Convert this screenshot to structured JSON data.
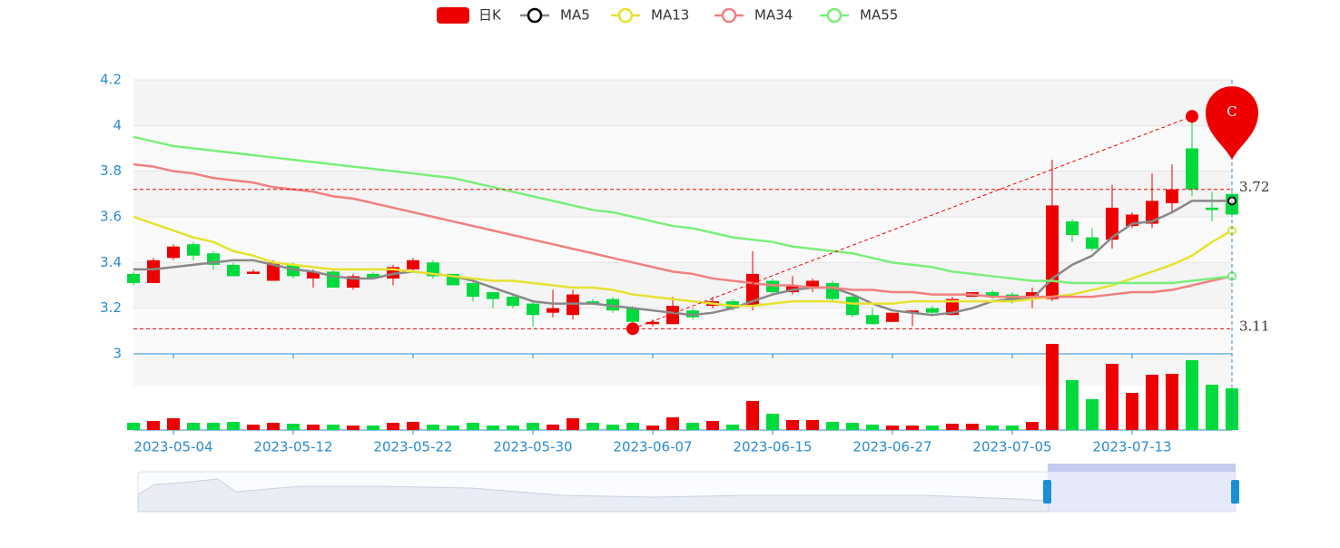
{
  "chart_data": {
    "type": "candlestick",
    "categories": [
      null,
      null,
      "2023-05-04",
      null,
      null,
      null,
      null,
      null,
      "2023-05-12",
      null,
      null,
      null,
      null,
      null,
      "2023-05-22",
      null,
      null,
      null,
      null,
      null,
      "2023-05-30",
      null,
      null,
      null,
      null,
      null,
      "2023-06-07",
      null,
      null,
      null,
      null,
      null,
      "2023-06-15",
      null,
      null,
      null,
      null,
      null,
      "2023-06-27",
      null,
      null,
      null,
      null,
      null,
      "2023-07-05",
      null,
      null,
      null,
      null,
      null,
      "2023-07-13",
      null,
      null,
      null,
      null,
      null
    ],
    "ylim": [
      3,
      4.2
    ],
    "yticks": [
      3,
      3.2,
      3.4,
      3.6,
      3.8,
      4,
      4.2
    ],
    "candles": {
      "name": "日K",
      "up_color": "#ec0000",
      "down_color": "#00da3c",
      "open": [
        3.35,
        3.31,
        3.42,
        3.48,
        3.44,
        3.39,
        3.35,
        3.32,
        3.39,
        3.33,
        3.36,
        3.29,
        3.35,
        3.33,
        3.37,
        3.4,
        3.35,
        3.31,
        3.27,
        3.25,
        3.22,
        3.18,
        3.17,
        3.23,
        3.24,
        3.2,
        3.13,
        3.13,
        3.19,
        3.21,
        3.23,
        3.21,
        3.32,
        3.27,
        3.29,
        3.31,
        3.25,
        3.17,
        3.14,
        3.18,
        3.2,
        3.17,
        3.25,
        3.27,
        3.26,
        3.24,
        3.24,
        3.58,
        3.51,
        3.5,
        3.56,
        3.57,
        3.66,
        3.9,
        3.64,
        3.7
      ],
      "close": [
        3.31,
        3.41,
        3.47,
        3.43,
        3.39,
        3.34,
        3.36,
        3.4,
        3.34,
        3.36,
        3.29,
        3.34,
        3.33,
        3.38,
        3.41,
        3.34,
        3.3,
        3.25,
        3.24,
        3.21,
        3.17,
        3.2,
        3.26,
        3.22,
        3.19,
        3.14,
        3.14,
        3.21,
        3.16,
        3.23,
        3.2,
        3.35,
        3.27,
        3.3,
        3.32,
        3.24,
        3.17,
        3.13,
        3.18,
        3.19,
        3.18,
        3.24,
        3.27,
        3.25,
        3.23,
        3.27,
        3.65,
        3.52,
        3.46,
        3.64,
        3.61,
        3.67,
        3.72,
        3.72,
        3.63,
        3.61
      ],
      "low": [
        3.3,
        3.31,
        3.41,
        3.41,
        3.37,
        3.34,
        3.35,
        3.32,
        3.33,
        3.29,
        3.29,
        3.28,
        3.33,
        3.3,
        3.36,
        3.33,
        3.3,
        3.23,
        3.2,
        3.2,
        3.12,
        3.16,
        3.15,
        3.22,
        3.18,
        3.11,
        3.12,
        3.13,
        3.15,
        3.2,
        3.19,
        3.19,
        3.26,
        3.26,
        3.27,
        3.23,
        3.16,
        3.13,
        3.14,
        3.12,
        3.17,
        3.17,
        3.25,
        3.24,
        3.22,
        3.2,
        3.23,
        3.49,
        3.45,
        3.46,
        3.55,
        3.55,
        3.62,
        3.69,
        3.58,
        3.61
      ],
      "high": [
        3.36,
        3.42,
        3.48,
        3.49,
        3.45,
        3.4,
        3.37,
        3.41,
        3.4,
        3.37,
        3.37,
        3.35,
        3.36,
        3.39,
        3.42,
        3.41,
        3.35,
        3.32,
        3.27,
        3.26,
        3.23,
        3.28,
        3.28,
        3.24,
        3.25,
        3.21,
        3.15,
        3.25,
        3.2,
        3.25,
        3.24,
        3.45,
        3.33,
        3.34,
        3.33,
        3.32,
        3.26,
        3.2,
        3.18,
        3.19,
        3.21,
        3.25,
        3.27,
        3.28,
        3.27,
        3.29,
        3.85,
        3.59,
        3.55,
        3.74,
        3.62,
        3.79,
        3.83,
        4.04,
        3.71,
        3.71
      ]
    },
    "lines": [
      {
        "name": "MA5",
        "color": "#888888",
        "values": [
          3.37,
          3.37,
          3.38,
          3.39,
          3.4,
          3.41,
          3.41,
          3.39,
          3.37,
          3.36,
          3.34,
          3.33,
          3.33,
          3.35,
          3.36,
          3.35,
          3.34,
          3.32,
          3.29,
          3.26,
          3.23,
          3.22,
          3.22,
          3.22,
          3.21,
          3.2,
          3.19,
          3.18,
          3.17,
          3.18,
          3.2,
          3.23,
          3.26,
          3.28,
          3.29,
          3.29,
          3.26,
          3.22,
          3.19,
          3.18,
          3.17,
          3.18,
          3.2,
          3.23,
          3.24,
          3.24,
          3.33,
          3.39,
          3.43,
          3.51,
          3.57,
          3.58,
          3.62,
          3.67,
          3.67,
          3.67
        ]
      },
      {
        "name": "MA13",
        "color": "#e6e22f",
        "values": [
          3.6,
          3.57,
          3.54,
          3.51,
          3.49,
          3.45,
          3.43,
          3.4,
          3.39,
          3.38,
          3.37,
          3.37,
          3.37,
          3.37,
          3.36,
          3.35,
          3.34,
          3.33,
          3.32,
          3.32,
          3.31,
          3.3,
          3.29,
          3.29,
          3.28,
          3.26,
          3.25,
          3.24,
          3.23,
          3.22,
          3.21,
          3.21,
          3.22,
          3.23,
          3.23,
          3.23,
          3.22,
          3.22,
          3.22,
          3.23,
          3.23,
          3.23,
          3.23,
          3.23,
          3.23,
          3.24,
          3.25,
          3.26,
          3.28,
          3.3,
          3.33,
          3.36,
          3.39,
          3.43,
          3.49,
          3.54
        ]
      },
      {
        "name": "MA34",
        "color": "#f08080",
        "values": [
          3.83,
          3.82,
          3.8,
          3.79,
          3.77,
          3.76,
          3.75,
          3.73,
          3.72,
          3.71,
          3.69,
          3.68,
          3.66,
          3.64,
          3.62,
          3.6,
          3.58,
          3.56,
          3.54,
          3.52,
          3.5,
          3.48,
          3.46,
          3.44,
          3.42,
          3.4,
          3.38,
          3.36,
          3.35,
          3.33,
          3.32,
          3.31,
          3.3,
          3.3,
          3.29,
          3.29,
          3.28,
          3.28,
          3.27,
          3.27,
          3.26,
          3.26,
          3.26,
          3.25,
          3.25,
          3.25,
          3.25,
          3.25,
          3.25,
          3.26,
          3.27,
          3.27,
          3.28,
          3.3,
          3.32,
          3.34
        ]
      },
      {
        "name": "MA55",
        "color": "#7aef7a",
        "values": [
          3.95,
          3.93,
          3.91,
          3.9,
          3.89,
          3.88,
          3.87,
          3.86,
          3.85,
          3.84,
          3.83,
          3.82,
          3.81,
          3.8,
          3.79,
          3.78,
          3.77,
          3.75,
          3.73,
          3.71,
          3.69,
          3.67,
          3.65,
          3.63,
          3.62,
          3.6,
          3.58,
          3.56,
          3.55,
          3.53,
          3.51,
          3.5,
          3.49,
          3.47,
          3.46,
          3.45,
          3.44,
          3.42,
          3.4,
          3.39,
          3.38,
          3.36,
          3.35,
          3.34,
          3.33,
          3.32,
          3.32,
          3.31,
          3.31,
          3.31,
          3.31,
          3.31,
          3.31,
          3.32,
          3.33,
          3.34
        ]
      }
    ],
    "volume": {
      "ylim": [
        0,
        95
      ],
      "values": [
        8,
        10,
        13,
        8,
        8,
        9,
        6,
        8,
        7,
        6,
        6,
        5,
        5,
        8,
        9,
        6,
        5,
        8,
        5,
        5,
        8,
        6,
        13,
        8,
        6,
        8,
        5,
        14,
        8,
        10,
        6,
        32,
        18,
        11,
        11,
        9,
        8,
        6,
        5,
        5,
        5,
        7,
        7,
        5,
        5,
        9,
        95,
        55,
        34,
        73,
        41,
        61,
        62,
        77,
        50,
        46
      ]
    },
    "mark_lines": [
      3.72,
      3.11
    ],
    "pin": {
      "text": "C",
      "value": 3.85
    }
  }
}
